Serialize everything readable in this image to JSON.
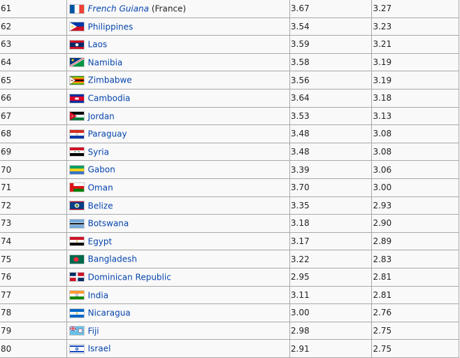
{
  "rows": [
    {
      "rank": "61",
      "country": "French Guiana",
      "italic": true,
      "note": " (France)",
      "flag": "france-flag-icon",
      "v1": "3.67",
      "v2": "3.27"
    },
    {
      "rank": "62",
      "country": "Philippines",
      "flag": "philippines-flag-icon",
      "v1": "3.54",
      "v2": "3.23"
    },
    {
      "rank": "63",
      "country": "Laos",
      "flag": "laos-flag-icon",
      "v1": "3.59",
      "v2": "3.21"
    },
    {
      "rank": "64",
      "country": "Namibia",
      "flag": "namibia-flag-icon",
      "v1": "3.58",
      "v2": "3.19"
    },
    {
      "rank": "65",
      "country": "Zimbabwe",
      "flag": "zimbabwe-flag-icon",
      "v1": "3.56",
      "v2": "3.19"
    },
    {
      "rank": "66",
      "country": "Cambodia",
      "flag": "cambodia-flag-icon",
      "v1": "3.64",
      "v2": "3.18"
    },
    {
      "rank": "67",
      "country": "Jordan",
      "flag": "jordan-flag-icon",
      "v1": "3.53",
      "v2": "3.13"
    },
    {
      "rank": "68",
      "country": "Paraguay",
      "flag": "paraguay-flag-icon",
      "v1": "3.48",
      "v2": "3.08"
    },
    {
      "rank": "69",
      "country": "Syria",
      "flag": "syria-flag-icon",
      "v1": "3.48",
      "v2": "3.08"
    },
    {
      "rank": "70",
      "country": "Gabon",
      "flag": "gabon-flag-icon",
      "v1": "3.39",
      "v2": "3.06"
    },
    {
      "rank": "71",
      "country": "Oman",
      "flag": "oman-flag-icon",
      "v1": "3.70",
      "v2": "3.00"
    },
    {
      "rank": "72",
      "country": "Belize",
      "flag": "belize-flag-icon",
      "v1": "3.35",
      "v2": "2.93"
    },
    {
      "rank": "73",
      "country": "Botswana",
      "flag": "botswana-flag-icon",
      "v1": "3.18",
      "v2": "2.90"
    },
    {
      "rank": "74",
      "country": "Egypt",
      "flag": "egypt-flag-icon",
      "v1": "3.17",
      "v2": "2.89"
    },
    {
      "rank": "75",
      "country": "Bangladesh",
      "flag": "bangladesh-flag-icon",
      "v1": "3.22",
      "v2": "2.83"
    },
    {
      "rank": "76",
      "country": "Dominican Republic",
      "flag": "dominican-republic-flag-icon",
      "v1": "2.95",
      "v2": "2.81"
    },
    {
      "rank": "77",
      "country": "India",
      "flag": "india-flag-icon",
      "v1": "3.11",
      "v2": "2.81"
    },
    {
      "rank": "78",
      "country": "Nicaragua",
      "flag": "nicaragua-flag-icon",
      "v1": "3.00",
      "v2": "2.76"
    },
    {
      "rank": "79",
      "country": "Fiji",
      "flag": "fiji-flag-icon",
      "v1": "2.98",
      "v2": "2.75"
    },
    {
      "rank": "80",
      "country": "Israel",
      "flag": "israel-flag-icon",
      "v1": "2.91",
      "v2": "2.75"
    }
  ]
}
